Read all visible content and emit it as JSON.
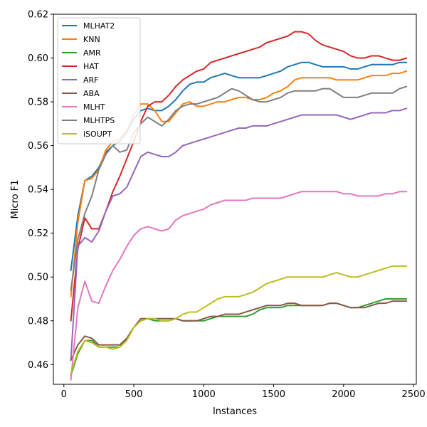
{
  "chart_data": {
    "type": "line",
    "title": "",
    "xlabel": "Instances",
    "ylabel": "Micro F1",
    "xlim": [
      -75,
      2520
    ],
    "ylim": [
      0.451,
      0.62
    ],
    "xticks": [
      0,
      500,
      1000,
      1500,
      2000,
      2500
    ],
    "yticks": [
      0.46,
      0.48,
      0.5,
      0.52,
      0.54,
      0.56,
      0.58,
      0.6,
      0.62
    ],
    "ytick_labels": [
      "0.46",
      "0.48",
      "0.50",
      "0.52",
      "0.54",
      "0.56",
      "0.58",
      "0.60",
      "0.62"
    ],
    "grid": false,
    "legend_position": "top-left",
    "x": [
      50,
      100,
      150,
      200,
      250,
      300,
      350,
      400,
      450,
      500,
      550,
      600,
      650,
      700,
      750,
      800,
      850,
      900,
      950,
      1000,
      1050,
      1100,
      1150,
      1200,
      1250,
      1300,
      1350,
      1400,
      1450,
      1500,
      1550,
      1600,
      1650,
      1700,
      1750,
      1800,
      1850,
      1900,
      1950,
      2000,
      2050,
      2100,
      2150,
      2200,
      2250,
      2300,
      2350,
      2400,
      2450
    ],
    "series": [
      {
        "name": "MLHAT2",
        "color": "#1f77b4",
        "values": [
          0.503,
          0.528,
          0.544,
          0.546,
          0.55,
          0.557,
          0.56,
          0.562,
          0.566,
          0.572,
          0.576,
          0.577,
          0.576,
          0.576,
          0.578,
          0.581,
          0.585,
          0.588,
          0.589,
          0.589,
          0.591,
          0.592,
          0.593,
          0.592,
          0.591,
          0.591,
          0.591,
          0.591,
          0.592,
          0.593,
          0.594,
          0.596,
          0.597,
          0.598,
          0.598,
          0.597,
          0.596,
          0.596,
          0.596,
          0.596,
          0.595,
          0.595,
          0.596,
          0.597,
          0.597,
          0.597,
          0.597,
          0.598,
          0.598
        ]
      },
      {
        "name": "KNN",
        "color": "#ff7f0e",
        "values": [
          0.491,
          0.525,
          0.544,
          0.545,
          0.549,
          0.558,
          0.562,
          0.563,
          0.567,
          0.574,
          0.579,
          0.579,
          0.576,
          0.571,
          0.571,
          0.575,
          0.579,
          0.58,
          0.578,
          0.578,
          0.579,
          0.58,
          0.58,
          0.581,
          0.582,
          0.582,
          0.581,
          0.581,
          0.582,
          0.584,
          0.585,
          0.587,
          0.59,
          0.591,
          0.591,
          0.591,
          0.591,
          0.591,
          0.59,
          0.59,
          0.59,
          0.59,
          0.591,
          0.592,
          0.592,
          0.592,
          0.593,
          0.593,
          0.594
        ]
      },
      {
        "name": "AMR",
        "color": "#2ca02c",
        "values": [
          0.455,
          0.465,
          0.471,
          0.471,
          0.468,
          0.468,
          0.468,
          0.468,
          0.472,
          0.477,
          0.48,
          0.481,
          0.48,
          0.48,
          0.48,
          0.481,
          0.48,
          0.48,
          0.48,
          0.48,
          0.481,
          0.482,
          0.482,
          0.482,
          0.482,
          0.482,
          0.483,
          0.485,
          0.486,
          0.486,
          0.486,
          0.487,
          0.487,
          0.487,
          0.487,
          0.487,
          0.487,
          0.488,
          0.488,
          0.487,
          0.486,
          0.486,
          0.487,
          0.488,
          0.489,
          0.49,
          0.49,
          0.49,
          0.49
        ]
      },
      {
        "name": "HAT",
        "color": "#d62728",
        "values": [
          0.48,
          0.513,
          0.527,
          0.522,
          0.522,
          0.53,
          0.539,
          0.546,
          0.554,
          0.562,
          0.571,
          0.578,
          0.58,
          0.58,
          0.583,
          0.587,
          0.59,
          0.592,
          0.594,
          0.595,
          0.598,
          0.599,
          0.6,
          0.601,
          0.602,
          0.603,
          0.604,
          0.605,
          0.607,
          0.608,
          0.609,
          0.61,
          0.612,
          0.612,
          0.611,
          0.608,
          0.606,
          0.605,
          0.604,
          0.603,
          0.601,
          0.6,
          0.6,
          0.601,
          0.601,
          0.6,
          0.599,
          0.599,
          0.6
        ]
      },
      {
        "name": "ARF",
        "color": "#9467bd",
        "values": [
          0.462,
          0.514,
          0.518,
          0.516,
          0.521,
          0.53,
          0.537,
          0.538,
          0.541,
          0.548,
          0.555,
          0.557,
          0.556,
          0.555,
          0.555,
          0.557,
          0.56,
          0.561,
          0.562,
          0.563,
          0.564,
          0.565,
          0.566,
          0.567,
          0.568,
          0.568,
          0.569,
          0.569,
          0.569,
          0.57,
          0.571,
          0.572,
          0.573,
          0.574,
          0.574,
          0.574,
          0.574,
          0.574,
          0.574,
          0.573,
          0.572,
          0.573,
          0.574,
          0.575,
          0.575,
          0.575,
          0.576,
          0.576,
          0.577
        ]
      },
      {
        "name": "ABA",
        "color": "#8c564b",
        "values": [
          0.462,
          0.469,
          0.473,
          0.472,
          0.469,
          0.469,
          0.469,
          0.469,
          0.472,
          0.477,
          0.481,
          0.481,
          0.481,
          0.481,
          0.481,
          0.481,
          0.48,
          0.48,
          0.48,
          0.481,
          0.482,
          0.482,
          0.483,
          0.483,
          0.483,
          0.484,
          0.485,
          0.486,
          0.487,
          0.487,
          0.487,
          0.488,
          0.488,
          0.487,
          0.487,
          0.487,
          0.487,
          0.488,
          0.488,
          0.487,
          0.486,
          0.486,
          0.486,
          0.487,
          0.488,
          0.488,
          0.489,
          0.489,
          0.489
        ]
      },
      {
        "name": "MLHT",
        "color": "#e377c2",
        "values": [
          0.453,
          0.486,
          0.498,
          0.489,
          0.488,
          0.496,
          0.503,
          0.508,
          0.514,
          0.519,
          0.522,
          0.523,
          0.522,
          0.521,
          0.522,
          0.526,
          0.528,
          0.529,
          0.53,
          0.531,
          0.533,
          0.534,
          0.535,
          0.535,
          0.535,
          0.535,
          0.536,
          0.536,
          0.536,
          0.536,
          0.536,
          0.537,
          0.538,
          0.539,
          0.539,
          0.539,
          0.539,
          0.539,
          0.539,
          0.538,
          0.538,
          0.537,
          0.537,
          0.537,
          0.537,
          0.538,
          0.538,
          0.539,
          0.539
        ]
      },
      {
        "name": "MLHTPS",
        "color": "#7f7f7f",
        "values": [
          0.494,
          0.517,
          0.529,
          0.537,
          0.549,
          0.556,
          0.56,
          0.557,
          0.558,
          0.566,
          0.57,
          0.573,
          0.571,
          0.569,
          0.572,
          0.576,
          0.578,
          0.579,
          0.579,
          0.58,
          0.581,
          0.582,
          0.584,
          0.586,
          0.585,
          0.583,
          0.581,
          0.58,
          0.58,
          0.581,
          0.582,
          0.584,
          0.585,
          0.585,
          0.585,
          0.585,
          0.586,
          0.586,
          0.584,
          0.582,
          0.582,
          0.582,
          0.583,
          0.584,
          0.584,
          0.584,
          0.584,
          0.586,
          0.587
        ]
      },
      {
        "name": "iSOUPT",
        "color": "#bcbd22",
        "values": [
          0.456,
          0.466,
          0.471,
          0.47,
          0.468,
          0.468,
          0.467,
          0.468,
          0.471,
          0.477,
          0.48,
          0.481,
          0.481,
          0.48,
          0.48,
          0.481,
          0.483,
          0.484,
          0.484,
          0.486,
          0.488,
          0.49,
          0.491,
          0.491,
          0.491,
          0.492,
          0.493,
          0.495,
          0.497,
          0.498,
          0.499,
          0.5,
          0.5,
          0.5,
          0.5,
          0.5,
          0.5,
          0.501,
          0.502,
          0.501,
          0.5,
          0.5,
          0.501,
          0.502,
          0.503,
          0.504,
          0.505,
          0.505,
          0.505
        ]
      }
    ]
  }
}
